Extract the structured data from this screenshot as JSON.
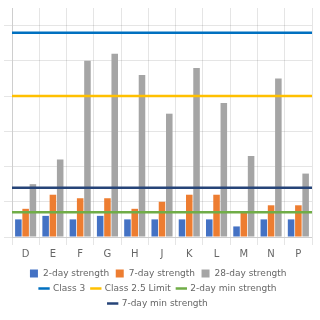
{
  "chart_data": {
    "type": "bar",
    "categories": [
      "D",
      "E",
      "F",
      "G",
      "H",
      "J",
      "K",
      "L",
      "M",
      "N",
      "P"
    ],
    "series": [
      {
        "name": "2-day strength",
        "color": "#4472c4",
        "values": [
          5,
          6,
          5,
          6,
          5,
          5,
          5,
          5,
          3,
          5,
          5
        ]
      },
      {
        "name": "7-day strength",
        "color": "#ed7d31",
        "values": [
          8,
          12,
          11,
          11,
          8,
          10,
          12,
          12,
          7,
          9,
          9
        ]
      },
      {
        "name": "28-day strength",
        "color": "#a5a5a5",
        "values": [
          15,
          22,
          50,
          52,
          46,
          35,
          48,
          38,
          23,
          45,
          18
        ]
      }
    ],
    "hlines": [
      {
        "name": "Class 3",
        "color": "#0070c0",
        "value": 58
      },
      {
        "name": "Class 2.5 Limit",
        "color": "#ffc000",
        "value": 40
      },
      {
        "name": "2-day min strength",
        "color": "#70ad47",
        "value": 7
      },
      {
        "name": "7-day min strength",
        "color": "#264478",
        "value": 14
      }
    ],
    "ylim": [
      0,
      65
    ],
    "yticks": [
      0,
      10,
      20,
      30,
      40,
      50,
      60
    ],
    "grid": true,
    "legend": "bottom",
    "tick_labels": "x"
  }
}
